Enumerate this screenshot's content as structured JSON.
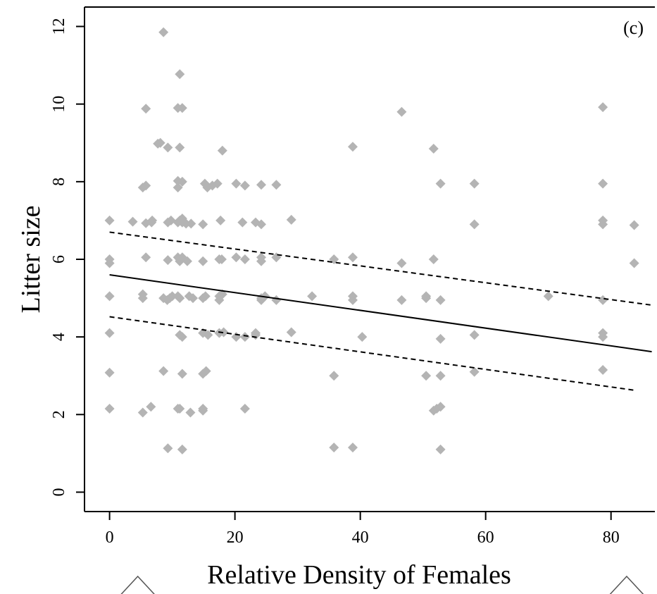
{
  "chart_data": {
    "type": "scatter",
    "title": "",
    "panel_label": "(c)",
    "xlabel": "Relative Density of Females",
    "ylabel": "Litter size",
    "xlim": [
      -4,
      87
    ],
    "ylim": [
      -0.5,
      12.5
    ],
    "xticks": [
      0,
      20,
      40,
      60,
      80
    ],
    "yticks": [
      0,
      2,
      4,
      6,
      8,
      10,
      12
    ],
    "grid": false,
    "legend": "none",
    "colors": {
      "points": "#b4b4b4",
      "fit_line": "#000000",
      "ci_lines": "#000000",
      "rug": "#555555"
    },
    "series": [
      {
        "kind": "points",
        "marker": "diamond",
        "points": [
          [
            0,
            7.0
          ],
          [
            0,
            6.0
          ],
          [
            0,
            5.9
          ],
          [
            0,
            5.05
          ],
          [
            0,
            4.1
          ],
          [
            0,
            3.08
          ],
          [
            0,
            2.15
          ],
          [
            3.7,
            6.97
          ],
          [
            5.3,
            7.85
          ],
          [
            5.3,
            5.1
          ],
          [
            5.3,
            5.0
          ],
          [
            5.3,
            2.05
          ],
          [
            5.8,
            9.88
          ],
          [
            5.8,
            7.9
          ],
          [
            5.8,
            6.93
          ],
          [
            5.8,
            6.05
          ],
          [
            6.6,
            2.2
          ],
          [
            6.7,
            6.95
          ],
          [
            6.8,
            7.0
          ],
          [
            7.7,
            8.98
          ],
          [
            8.1,
            9.0
          ],
          [
            8.6,
            11.85
          ],
          [
            8.6,
            3.12
          ],
          [
            8.6,
            5.0
          ],
          [
            9.2,
            4.95
          ],
          [
            9.3,
            5.98
          ],
          [
            9.3,
            6.95
          ],
          [
            9.3,
            8.88
          ],
          [
            9.3,
            1.13
          ],
          [
            9.6,
            5.0
          ],
          [
            9.8,
            7.0
          ],
          [
            10.0,
            5.05
          ],
          [
            10.9,
            9.9
          ],
          [
            10.9,
            8.02
          ],
          [
            10.9,
            7.85
          ],
          [
            10.9,
            6.95
          ],
          [
            10.9,
            6.05
          ],
          [
            10.9,
            5.05
          ],
          [
            10.9,
            2.15
          ],
          [
            11.2,
            10.77
          ],
          [
            11.2,
            8.88
          ],
          [
            11.2,
            7.0
          ],
          [
            11.2,
            6.0
          ],
          [
            11.2,
            5.95
          ],
          [
            11.2,
            5.0
          ],
          [
            11.2,
            4.05
          ],
          [
            11.2,
            2.15
          ],
          [
            11.6,
            9.9
          ],
          [
            11.6,
            8.0
          ],
          [
            11.6,
            7.05
          ],
          [
            11.6,
            6.95
          ],
          [
            11.6,
            6.05
          ],
          [
            11.6,
            4.0
          ],
          [
            11.6,
            3.05
          ],
          [
            11.6,
            1.1
          ],
          [
            12.2,
            6.92
          ],
          [
            12.4,
            5.95
          ],
          [
            12.7,
            5.05
          ],
          [
            12.9,
            2.05
          ],
          [
            13.0,
            6.92
          ],
          [
            13.3,
            5.0
          ],
          [
            14.9,
            6.9
          ],
          [
            14.9,
            5.95
          ],
          [
            14.9,
            5.0
          ],
          [
            14.9,
            4.1
          ],
          [
            14.9,
            3.05
          ],
          [
            14.9,
            2.15
          ],
          [
            14.9,
            2.1
          ],
          [
            15.2,
            7.95
          ],
          [
            15.3,
            5.05
          ],
          [
            15.4,
            3.12
          ],
          [
            15.6,
            7.85
          ],
          [
            15.7,
            4.05
          ],
          [
            16.4,
            7.9
          ],
          [
            17.2,
            7.95
          ],
          [
            17.5,
            6.0
          ],
          [
            17.5,
            5.05
          ],
          [
            17.5,
            4.1
          ],
          [
            17.5,
            4.95
          ],
          [
            17.7,
            7.0
          ],
          [
            17.9,
            6.0
          ],
          [
            18.0,
            8.8
          ],
          [
            18.0,
            5.1
          ],
          [
            18.2,
            4.12
          ],
          [
            20.2,
            7.95
          ],
          [
            20.2,
            6.05
          ],
          [
            20.2,
            4.0
          ],
          [
            21.2,
            6.95
          ],
          [
            21.6,
            7.9
          ],
          [
            21.6,
            6.0
          ],
          [
            21.6,
            4.0
          ],
          [
            21.6,
            2.15
          ],
          [
            23.3,
            6.95
          ],
          [
            23.3,
            4.05
          ],
          [
            23.3,
            4.1
          ],
          [
            24.2,
            7.92
          ],
          [
            24.2,
            6.9
          ],
          [
            24.2,
            6.05
          ],
          [
            24.2,
            5.95
          ],
          [
            24.2,
            5.0
          ],
          [
            24.2,
            4.95
          ],
          [
            24.8,
            5.05
          ],
          [
            26.6,
            6.05
          ],
          [
            26.6,
            4.95
          ],
          [
            26.6,
            7.92
          ],
          [
            29.0,
            7.02
          ],
          [
            29.0,
            4.12
          ],
          [
            32.3,
            5.05
          ],
          [
            35.8,
            6.0
          ],
          [
            35.8,
            3.0
          ],
          [
            35.8,
            1.15
          ],
          [
            38.8,
            8.9
          ],
          [
            38.8,
            6.05
          ],
          [
            38.8,
            5.05
          ],
          [
            38.8,
            4.95
          ],
          [
            38.8,
            1.15
          ],
          [
            40.3,
            4.0
          ],
          [
            46.6,
            9.8
          ],
          [
            46.6,
            5.9
          ],
          [
            46.6,
            4.95
          ],
          [
            50.5,
            5.05
          ],
          [
            50.5,
            5.0
          ],
          [
            50.5,
            3.0
          ],
          [
            51.7,
            8.85
          ],
          [
            51.7,
            6.0
          ],
          [
            51.7,
            2.1
          ],
          [
            52.2,
            2.15
          ],
          [
            52.8,
            7.95
          ],
          [
            52.8,
            4.95
          ],
          [
            52.8,
            3.95
          ],
          [
            52.8,
            3.0
          ],
          [
            52.8,
            2.2
          ],
          [
            52.8,
            1.1
          ],
          [
            58.2,
            7.95
          ],
          [
            58.2,
            6.9
          ],
          [
            58.2,
            4.05
          ],
          [
            58.2,
            3.1
          ],
          [
            70.0,
            5.05
          ],
          [
            78.7,
            9.92
          ],
          [
            78.7,
            7.95
          ],
          [
            78.7,
            7.0
          ],
          [
            78.7,
            6.9
          ],
          [
            78.7,
            4.95
          ],
          [
            78.7,
            4.1
          ],
          [
            78.7,
            4.0
          ],
          [
            78.7,
            3.15
          ],
          [
            83.7,
            6.88
          ],
          [
            83.7,
            5.9
          ]
        ]
      },
      {
        "kind": "line",
        "style": "solid",
        "x": [
          0,
          86.5
        ],
        "y": [
          5.6,
          3.62
        ]
      },
      {
        "kind": "line",
        "style": "dashed",
        "x": [
          0,
          86.5
        ],
        "y": [
          6.7,
          4.82
        ]
      },
      {
        "kind": "line",
        "style": "dashed",
        "x": [
          0,
          84
        ],
        "y": [
          4.52,
          2.62
        ]
      }
    ],
    "rug_marks_x": [
      4.5,
      82.5
    ]
  }
}
